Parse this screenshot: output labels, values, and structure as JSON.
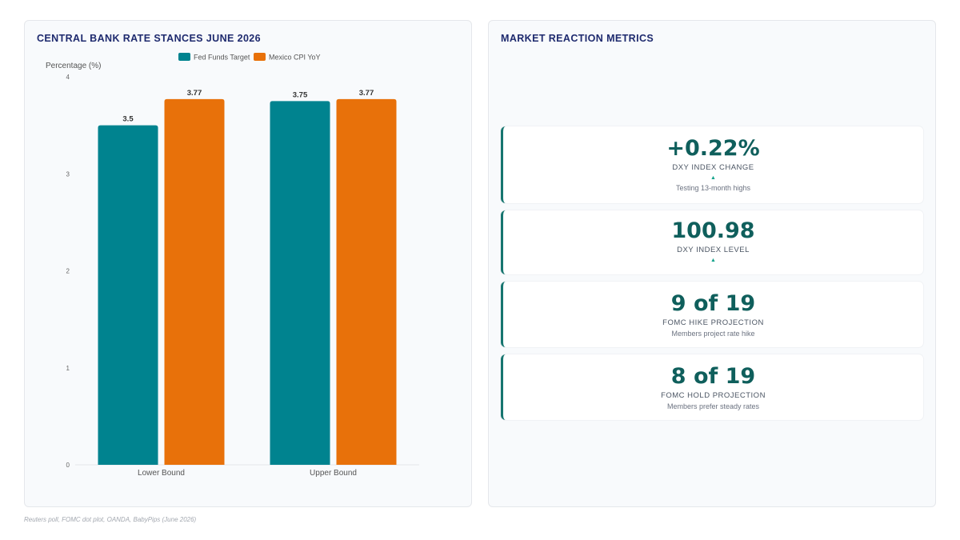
{
  "left_panel": {
    "title": "CENTRAL BANK RATE STANCES JUNE 2026"
  },
  "right_panel": {
    "title": "MARKET REACTION METRICS"
  },
  "chart_data": {
    "type": "bar",
    "title": "CENTRAL BANK RATE STANCES JUNE 2026",
    "ylabel": "Percentage (%)",
    "xlabel": "",
    "categories": [
      "Lower Bound",
      "Upper Bound"
    ],
    "series": [
      {
        "name": "Fed Funds Target",
        "values": [
          3.5,
          3.75
        ],
        "color": "#00838f"
      },
      {
        "name": "Mexico CPI YoY",
        "values": [
          3.77,
          3.77
        ],
        "color": "#e8710a"
      }
    ],
    "ylim": [
      0,
      4
    ],
    "yticks": [
      0,
      1,
      2,
      3,
      4
    ],
    "legend": "top-center",
    "grid": false
  },
  "metrics": [
    {
      "value": "+0.22%",
      "label": "DXY INDEX CHANGE",
      "arrow": "▲",
      "note": "Testing 13-month highs"
    },
    {
      "value": "100.98",
      "label": "DXY INDEX LEVEL",
      "arrow": "▲",
      "note": ""
    },
    {
      "value": "9 of 19",
      "label": "FOMC HIKE PROJECTION",
      "arrow": "",
      "note": "Members project rate hike"
    },
    {
      "value": "8 of 19",
      "label": "FOMC HOLD PROJECTION",
      "arrow": "",
      "note": "Members prefer steady rates"
    }
  ],
  "source": "Reuters poll, FOMC dot plot, OANDA, BabyPips (June 2026)",
  "colors": {
    "accent": "#16756f",
    "title": "#1e2a6e"
  }
}
